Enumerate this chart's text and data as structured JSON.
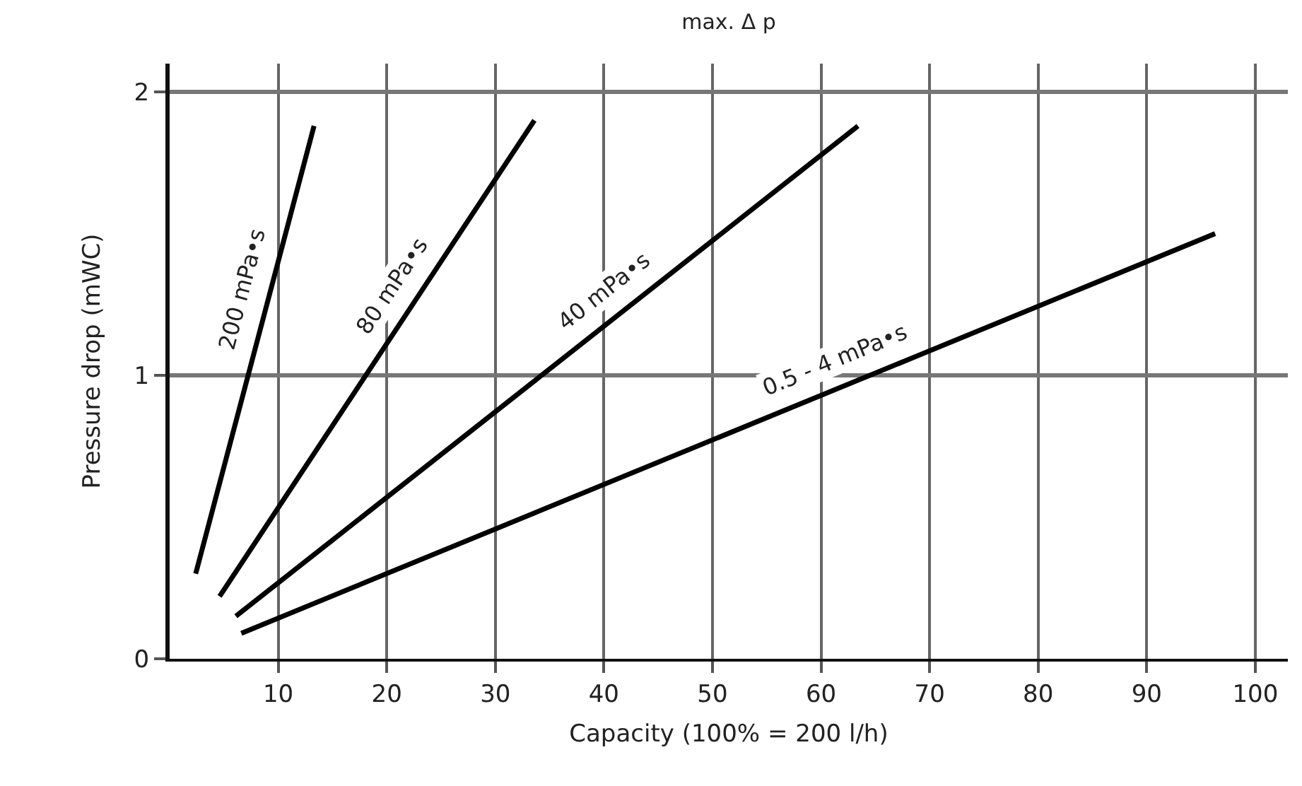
{
  "chart_data": {
    "type": "line",
    "title": "max. Δ p",
    "xlabel": "Capacity (100% = 200 l/h)",
    "ylabel": "Pressure drop (mWC)",
    "xlim": [
      0,
      103
    ],
    "ylim": [
      0,
      2.1
    ],
    "xticks": [
      10,
      20,
      30,
      40,
      50,
      60,
      70,
      80,
      90,
      100
    ],
    "yticks": [
      0,
      1,
      2
    ],
    "grid": true,
    "legend": false,
    "marker": "none",
    "line_style": "solid",
    "series": [
      {
        "name": "200 mPa•s",
        "color": "#000000",
        "x": [
          2.4,
          13.3
        ],
        "values": [
          0.3,
          1.88
        ]
      },
      {
        "name": "80 mPa•s",
        "color": "#000000",
        "x": [
          4.6,
          33.6
        ],
        "values": [
          0.22,
          1.9
        ]
      },
      {
        "name": "40 mPa•s",
        "color": "#000000",
        "x": [
          6.1,
          63.4
        ],
        "values": [
          0.15,
          1.88
        ]
      },
      {
        "name": "0.5 - 4 mPa•s",
        "color": "#000000",
        "x": [
          6.6,
          96.3
        ],
        "values": [
          0.09,
          1.5
        ]
      }
    ]
  }
}
